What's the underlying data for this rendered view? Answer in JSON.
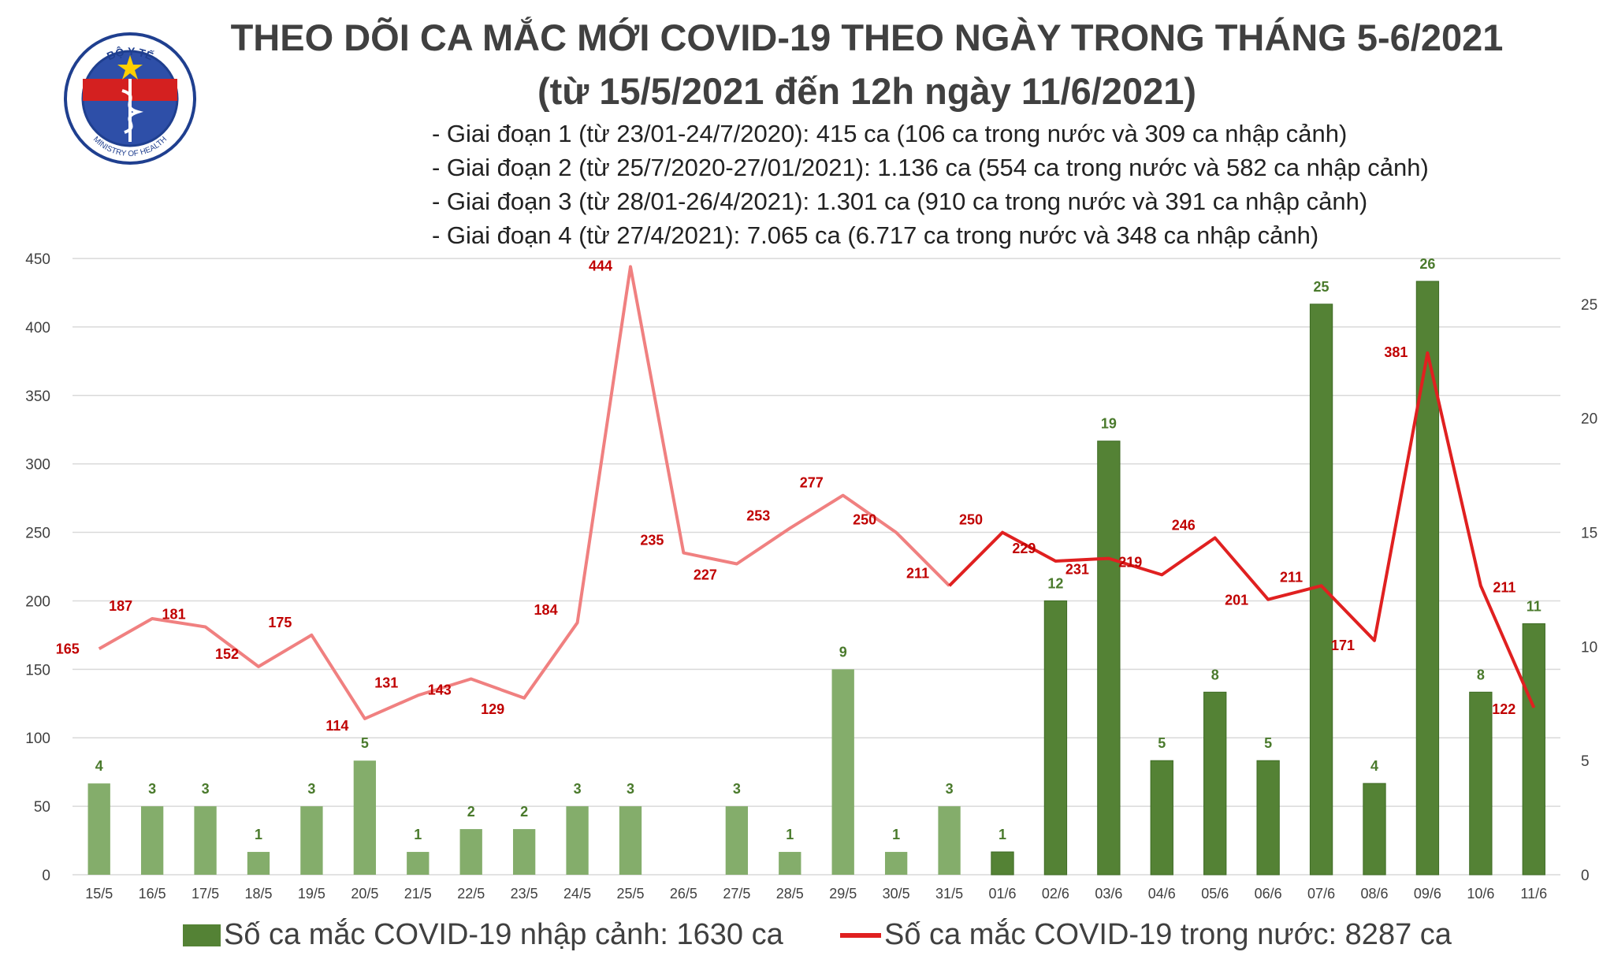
{
  "logo": {
    "text_top": "BỘ Y TẾ",
    "text_bottom": "MINISTRY OF HEALTH"
  },
  "header": {
    "title_line1": "THEO DÕI CA MẮC MỚI COVID-19 THEO NGÀY TRONG THÁNG 5-6/2021",
    "title_line2": "(từ 15/5/2021 đến 12h ngày 11/6/2021)",
    "stages": [
      "- Giai đoạn 1 (từ 23/01-24/7/2020): 415 ca (106 ca trong nước và 309 ca nhập cảnh)",
      "- Giai đoạn 2 (từ 25/7/2020-27/01/2021): 1.136 ca (554 ca trong nước và 582 ca nhập cảnh)",
      "- Giai đoạn 3 (từ 28/01-26/4/2021): 1.301 ca (910 ca trong nước và 391 ca nhập cảnh)",
      "- Giai đoạn 4 (từ 27/4/2021): 7.065 ca (6.717 ca trong nước và 348 ca nhập cảnh)"
    ]
  },
  "legend": {
    "bar_label": "Số ca mắc COVID-19 nhập cảnh: 1630 ca",
    "line_label": "Số ca mắc COVID-19 trong nước: 8287 ca"
  },
  "colors": {
    "bar_light": "#84ad6b",
    "bar_dark": "#548235",
    "bar_label": "#4a7a2c",
    "line_light": "#f08080",
    "line_dark": "#e02020",
    "line_label": "#c00000",
    "grid": "#d9d9d9",
    "axis_text": "#404040"
  },
  "chart_data": {
    "type": "bar+line",
    "categories": [
      "15/5",
      "16/5",
      "17/5",
      "18/5",
      "19/5",
      "20/5",
      "21/5",
      "22/5",
      "23/5",
      "24/5",
      "25/5",
      "26/5",
      "27/5",
      "28/5",
      "29/5",
      "30/5",
      "31/5",
      "01/6",
      "02/6",
      "03/6",
      "04/6",
      "05/6",
      "06/6",
      "07/6",
      "08/6",
      "09/6",
      "10/6",
      "11/6"
    ],
    "series": [
      {
        "name": "Số ca mắc COVID-19 nhập cảnh: 1630 ca",
        "type": "bar",
        "axis": "right",
        "values": [
          4,
          3,
          3,
          1,
          3,
          5,
          1,
          2,
          2,
          3,
          3,
          null,
          3,
          1,
          9,
          1,
          3,
          1,
          12,
          19,
          5,
          8,
          5,
          25,
          4,
          26,
          8,
          11
        ]
      },
      {
        "name": "Số ca mắc COVID-19 trong nước: 8287 ca",
        "type": "line",
        "axis": "left",
        "values": [
          165,
          187,
          181,
          152,
          175,
          114,
          131,
          143,
          129,
          184,
          444,
          235,
          227,
          253,
          277,
          250,
          211,
          250,
          229,
          231,
          219,
          246,
          201,
          211,
          171,
          381,
          211,
          122
        ]
      }
    ],
    "left_axis": {
      "min": 0,
      "max": 450,
      "ticks": [
        0,
        50,
        100,
        150,
        200,
        250,
        300,
        350,
        400,
        450
      ]
    },
    "right_axis": {
      "min": 0,
      "max": 27,
      "ticks": [
        0,
        5,
        10,
        15,
        20,
        25
      ]
    },
    "grid": true,
    "legend_position": "bottom"
  }
}
